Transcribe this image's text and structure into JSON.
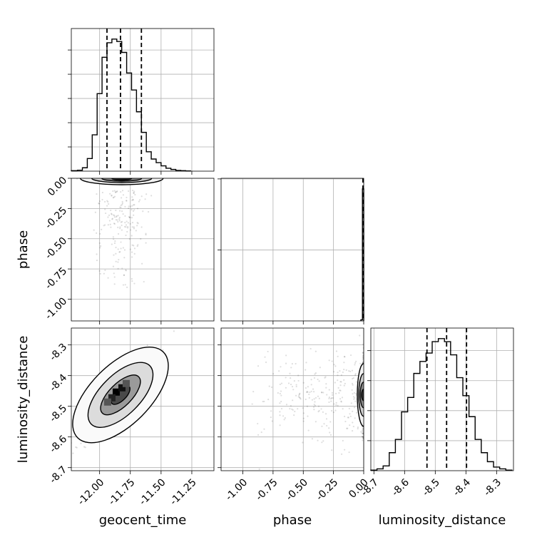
{
  "chart_data": {
    "type": "corner",
    "parameters": [
      "geocent_time",
      "phase",
      "luminosity_distance"
    ],
    "ranges": {
      "geocent_time": [
        -12.23,
        -11.07
      ],
      "phase": [
        -1.18,
        0.0
      ],
      "luminosity_distance": [
        -8.71,
        -8.245
      ]
    },
    "ticks": {
      "geocent_time": [
        "-12.00",
        "-11.75",
        "-11.50",
        "-11.25"
      ],
      "phase": [
        "-1.00",
        "-0.75",
        "-0.50",
        "-0.25",
        "0.00"
      ],
      "luminosity_distance": [
        "-8.7",
        "-8.6",
        "-8.5",
        "-8.4",
        "-8.3"
      ]
    },
    "tick_values": {
      "geocent_time": [
        -12.0,
        -11.75,
        -11.5,
        -11.25
      ],
      "phase": [
        -1.0,
        -0.75,
        -0.5,
        -0.25,
        0.0
      ],
      "luminosity_distance": [
        -8.7,
        -8.6,
        -8.5,
        -8.4,
        -8.3
      ]
    },
    "quantiles": {
      "geocent_time": [
        -11.94,
        -11.83,
        -11.66
      ],
      "phase": [
        -0.003,
        -0.001,
        0.0
      ],
      "luminosity_distance": [
        -8.527,
        -8.463,
        -8.398
      ]
    },
    "histograms": {
      "geocent_time": {
        "edges": [
          -12.23,
          -12.18,
          -12.14,
          -12.1,
          -12.06,
          -12.02,
          -11.98,
          -11.94,
          -11.9,
          -11.86,
          -11.82,
          -11.78,
          -11.74,
          -11.7,
          -11.66,
          -11.62,
          -11.58,
          -11.54,
          -11.5,
          -11.46,
          -11.42,
          -11.38,
          -11.34,
          -11.3,
          -11.26
        ],
        "counts": [
          2,
          4,
          14,
          52,
          150,
          320,
          470,
          530,
          545,
          535,
          490,
          405,
          335,
          245,
          160,
          80,
          50,
          35,
          22,
          12,
          7,
          3,
          2,
          1
        ]
      },
      "phase": {
        "edges": [
          -0.0235,
          -0.0105,
          0.0
        ],
        "counts": [
          8,
          930
        ]
      },
      "luminosity_distance": {
        "edges": [
          -8.71,
          -8.69,
          -8.67,
          -8.65,
          -8.63,
          -8.61,
          -8.59,
          -8.57,
          -8.55,
          -8.53,
          -8.51,
          -8.49,
          -8.47,
          -8.45,
          -8.43,
          -8.41,
          -8.39,
          -8.37,
          -8.35,
          -8.33,
          -8.31,
          -8.29,
          -8.27,
          -8.25
        ],
        "counts": [
          1,
          3,
          8,
          30,
          52,
          98,
          122,
          162,
          182,
          196,
          215,
          220,
          215,
          193,
          155,
          125,
          90,
          52,
          30,
          15,
          6,
          3,
          1
        ]
      }
    },
    "posterior_2d": {
      "geocent_time_vs_phase": {
        "center": [
          -11.82,
          -0.002
        ],
        "spread": [
          0.09,
          0.006
        ],
        "outlier_phase_range": [
          -1.0,
          -0.1
        ]
      },
      "geocent_time_vs_luminosity_distance": {
        "center": [
          -11.83,
          -8.463
        ],
        "spread": [
          0.12,
          0.05
        ],
        "correlation": 0.75
      },
      "phase_vs_luminosity_distance": {
        "center": [
          -0.002,
          -8.463
        ],
        "spread": [
          0.006,
          0.05
        ]
      }
    },
    "contour_levels": [
      0.118,
      0.393,
      0.675,
      0.865
    ],
    "grid": true,
    "legend": "none"
  }
}
